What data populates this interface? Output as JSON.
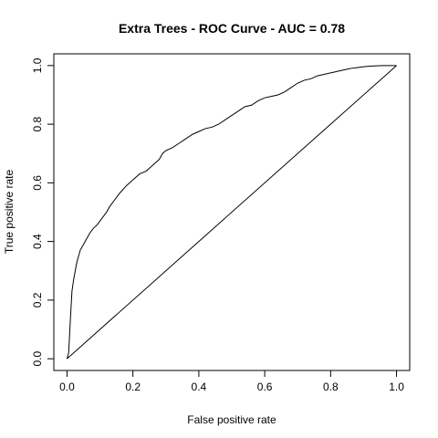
{
  "chart_data": {
    "type": "line",
    "title": "Extra Trees - ROC Curve - AUC =  0.78",
    "xlabel": "False positive rate",
    "ylabel": "True positive rate",
    "xlim": [
      -0.04,
      1.04
    ],
    "ylim": [
      -0.04,
      1.04
    ],
    "x_ticks": [
      0.0,
      0.2,
      0.4,
      0.6,
      0.8,
      1.0
    ],
    "x_tick_labels": [
      "0.0",
      "0.2",
      "0.4",
      "0.6",
      "0.8",
      "1.0"
    ],
    "y_ticks": [
      0.0,
      0.2,
      0.4,
      0.6,
      0.8,
      1.0
    ],
    "y_tick_labels": [
      "0.0",
      "0.2",
      "0.4",
      "0.6",
      "0.8",
      "1.0"
    ],
    "grid": false,
    "legend": "none",
    "line_color": "#000000",
    "series": [
      {
        "x": [
          0.0,
          0.005,
          0.01,
          0.015,
          0.02,
          0.03,
          0.04,
          0.05,
          0.06,
          0.07,
          0.08,
          0.09,
          0.1,
          0.11,
          0.12,
          0.13,
          0.14,
          0.15,
          0.16,
          0.18,
          0.2,
          0.22,
          0.24,
          0.26,
          0.28,
          0.29,
          0.3,
          0.32,
          0.34,
          0.36,
          0.38,
          0.4,
          0.42,
          0.44,
          0.46,
          0.48,
          0.5,
          0.52,
          0.54,
          0.56,
          0.58,
          0.6,
          0.62,
          0.64,
          0.66,
          0.68,
          0.7,
          0.72,
          0.74,
          0.76,
          0.78,
          0.8,
          0.82,
          0.84,
          0.86,
          0.88,
          0.9,
          0.92,
          0.94,
          0.96,
          0.98,
          1.0
        ],
        "y": [
          0.0,
          0.02,
          0.13,
          0.23,
          0.27,
          0.33,
          0.37,
          0.39,
          0.41,
          0.43,
          0.445,
          0.455,
          0.47,
          0.485,
          0.5,
          0.52,
          0.535,
          0.55,
          0.565,
          0.59,
          0.61,
          0.63,
          0.64,
          0.66,
          0.68,
          0.7,
          0.71,
          0.72,
          0.735,
          0.75,
          0.765,
          0.775,
          0.785,
          0.79,
          0.8,
          0.815,
          0.83,
          0.845,
          0.86,
          0.865,
          0.88,
          0.89,
          0.895,
          0.9,
          0.91,
          0.925,
          0.94,
          0.95,
          0.955,
          0.965,
          0.97,
          0.975,
          0.98,
          0.985,
          0.99,
          0.993,
          0.996,
          0.998,
          0.999,
          1.0,
          1.0,
          1.0
        ]
      },
      {
        "x": [
          0.0,
          1.0
        ],
        "y": [
          0.0,
          1.0
        ]
      }
    ]
  }
}
